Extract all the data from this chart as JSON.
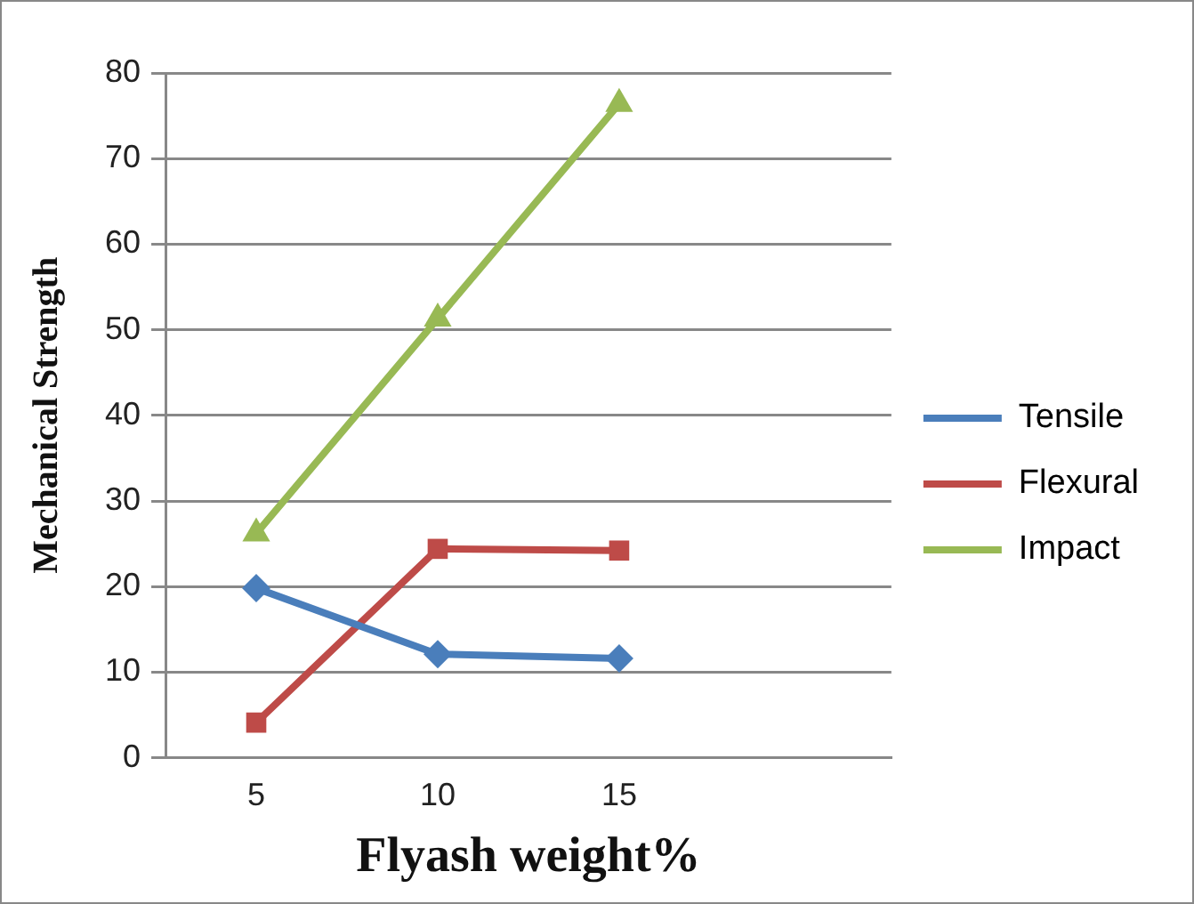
{
  "chart_data": {
    "type": "line",
    "xlabel": "Flyash weight%",
    "ylabel": "Mechanical Strength",
    "categories": [
      "5",
      "10",
      "15",
      null
    ],
    "series": [
      {
        "name": "Tensile",
        "color": "#4a7ebb",
        "marker": "diamond",
        "values": [
          19.8,
          12.1,
          11.6,
          null
        ]
      },
      {
        "name": "Flexural",
        "color": "#be4b48",
        "marker": "square",
        "values": [
          4.1,
          24.4,
          24.2,
          null
        ]
      },
      {
        "name": "Impact",
        "color": "#98b954",
        "marker": "triangle",
        "values": [
          26.2,
          51.3,
          76.4,
          null
        ]
      }
    ],
    "ylim": [
      0,
      80
    ],
    "yticks": [
      0,
      10,
      20,
      30,
      40,
      50,
      60,
      70,
      80
    ],
    "grid": "y",
    "legend": "right"
  }
}
